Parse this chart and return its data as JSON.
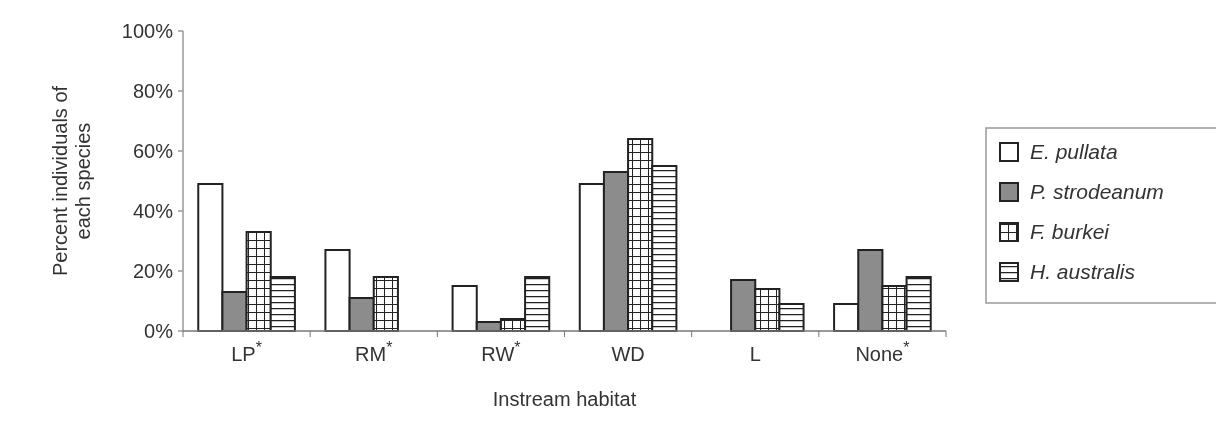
{
  "chart_data": {
    "type": "bar",
    "categories": [
      "LP$^{*}$",
      "RM$^{*}$",
      "RW$^{*}$",
      "WD",
      "L",
      "None$^{*}$"
    ],
    "series": [
      {
        "name": "E. pullata",
        "color": "#ffffff",
        "values": [
          49,
          27,
          15,
          49,
          null,
          9
        ]
      },
      {
        "name": "P. strodeanum",
        "color": "#8c8c8c",
        "values": [
          13,
          11,
          3,
          53,
          17,
          27
        ]
      },
      {
        "name": "F. burkei",
        "color": "#222222",
        "values": [
          33,
          18,
          4,
          64,
          14,
          15
        ]
      },
      {
        "name": "H. australis",
        "color": "#222222",
        "values": [
          18,
          null,
          18,
          55,
          9,
          18
        ]
      }
    ],
    "xlabel": "Instream habitat",
    "ylabel": "Percent individuals of each species",
    "ylim": [
      0,
      100
    ],
    "yticks": [
      {
        "value": 0,
        "label": "0%"
      },
      {
        "value": 20,
        "label": "20%"
      },
      {
        "value": 40,
        "label": "40%"
      },
      {
        "value": 60,
        "label": "60%"
      },
      {
        "value": 80,
        "label": "80%"
      },
      {
        "value": 100,
        "label": "100%"
      }
    ],
    "grid": false,
    "legend": "right"
  }
}
